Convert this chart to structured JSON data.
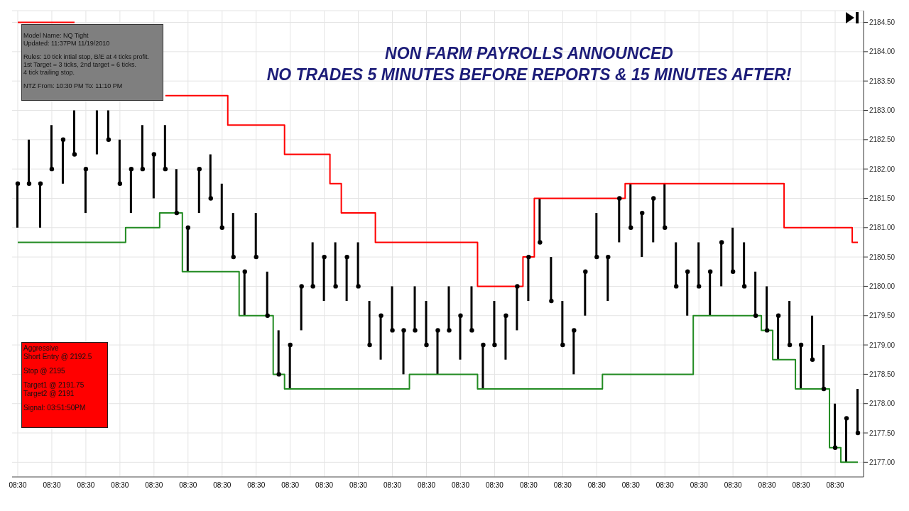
{
  "chart_data": {
    "type": "bar",
    "title": "NON FARM PAYROLLS ANNOUNCED",
    "subtitle": "NO TRADES 5 MINUTES BEFORE REPORTS & 15 MINUTES AFTER!",
    "categories": [
      "08:30",
      null,
      null,
      "08:30",
      null,
      null,
      "08:30",
      null,
      null,
      "08:30",
      null,
      null,
      "08:30",
      null,
      null,
      "08:30",
      null,
      null,
      "08:30",
      null,
      null,
      "08:30",
      null,
      null,
      "08:30",
      null,
      null,
      "08:30",
      null,
      null,
      "08:30",
      null,
      null,
      "08:30",
      null,
      null,
      "08:30",
      null,
      null,
      "08:30",
      null,
      null,
      "08:30",
      null,
      null,
      "08:30",
      null,
      null,
      "08:30",
      null,
      null,
      "08:30",
      null,
      null,
      "08:30",
      null,
      null,
      "08:30",
      null,
      null,
      "08:30",
      null,
      null,
      "08:30",
      null,
      null,
      "08:30",
      null,
      null,
      "08:30",
      null,
      null,
      "08:30",
      null,
      null
    ],
    "series": [
      {
        "color": "#000000",
        "base": [
          2181,
          2181.75,
          2181,
          2182,
          2181.75,
          2182.25,
          2181.25,
          2182.25,
          2182.5,
          2181.75,
          2181.25,
          2182,
          2181.5,
          2182,
          2181.25,
          2180.25,
          2181.25,
          2181.5,
          2181,
          2180.5,
          2179.5,
          2180.5,
          2179.5,
          2178.5,
          2178.25,
          2179.25,
          2180,
          2179.75,
          2180,
          2179.75,
          2180,
          2179,
          2178.75,
          2179.25,
          2178.5,
          2179.25,
          2179,
          2178.5,
          2179.25,
          2178.75,
          2179.25,
          2178.25,
          2179,
          2178.75,
          2179.25,
          2179.75,
          2180.75,
          2179.75,
          2179,
          2178.5,
          2179.5,
          2180.5,
          2179.75,
          2180.75,
          2181,
          2180.5,
          2180.75,
          2181,
          2180,
          2179.5,
          2180,
          2179.5,
          2180,
          2180.25,
          2180,
          2179.5,
          2179.25,
          2178.75,
          2179,
          2178.25,
          2178.75,
          2178.25,
          2177.25,
          2177,
          2177.5
        ],
        "values": [
          0.75,
          0.75,
          0.75,
          0.75,
          0.75,
          0.75,
          0.75,
          0.75,
          0.5,
          0.75,
          0.75,
          0.75,
          0.75,
          0.75,
          0.75,
          0.75,
          0.75,
          0.75,
          0.75,
          0.75,
          0.75,
          0.75,
          0.75,
          0.75,
          0.75,
          0.75,
          0.75,
          0.75,
          0.75,
          0.75,
          0.75,
          0.75,
          0.75,
          0.75,
          0.75,
          0.75,
          0.75,
          0.75,
          0.75,
          0.75,
          0.75,
          0.75,
          0.75,
          0.75,
          0.75,
          0.75,
          0.75,
          0.75,
          0.75,
          0.75,
          0.75,
          0.75,
          0.75,
          0.75,
          0.75,
          0.75,
          0.75,
          0.75,
          0.75,
          0.75,
          0.75,
          0.75,
          0.75,
          0.75,
          0.75,
          0.75,
          0.75,
          0.75,
          0.75,
          0.75,
          0.75,
          0.75,
          0.75,
          0.75,
          0.75
        ]
      },
      {
        "type": "scatter",
        "color": "#000000",
        "marker": "circle",
        "values": [
          2181.75,
          2181.75,
          2181.75,
          2182,
          2182.5,
          2182.25,
          2182,
          null,
          2182.5,
          2181.75,
          2182,
          2182,
          2182.25,
          2182,
          2181.25,
          2181,
          2182,
          2181.5,
          2181,
          2180.5,
          2180.25,
          2180.5,
          2179.5,
          2178.5,
          2179,
          2180,
          2180,
          2180.5,
          2180,
          2180.5,
          2180,
          2179,
          2179.5,
          2179.25,
          2179.25,
          2179.25,
          2179,
          2179.25,
          2179.25,
          2179.5,
          2179.25,
          2179,
          2179,
          2179.5,
          2180,
          2180.5,
          2180.75,
          2179.75,
          2179,
          2179.25,
          2180.25,
          2180.5,
          2180.5,
          2181.5,
          2181,
          2181.25,
          2181.5,
          2181,
          2180,
          2180.25,
          2180,
          2180.25,
          2180.75,
          2180.25,
          2180,
          2179.5,
          2179.25,
          2179.5,
          2179,
          2179,
          2178.75,
          2178.25,
          2177.25,
          2177.75,
          2177.5
        ]
      },
      {
        "type": "step",
        "color": "#ff0000",
        "values": [
          2184.5,
          2184.5,
          2184.5,
          2184.5,
          2184.5,
          2184.5,
          null,
          null,
          null,
          null,
          null,
          null,
          null,
          2183.25,
          2183.25,
          2183.25,
          2183.25,
          2183.25,
          2183.25,
          2182.75,
          2182.75,
          2182.75,
          2182.75,
          2182.75,
          2182.25,
          2182.25,
          2182.25,
          2182.25,
          2181.75,
          2181.25,
          2181.25,
          2181.25,
          2180.75,
          2180.75,
          2180.75,
          2180.75,
          2180.75,
          2180.75,
          2180.75,
          2180.75,
          2180.75,
          2180,
          2180,
          2180,
          2180,
          2180.5,
          2181.5,
          2181.5,
          2181.5,
          2181.5,
          2181.5,
          2181.5,
          2181.5,
          2181.5,
          2181.75,
          2181.75,
          2181.75,
          2181.75,
          2181.75,
          2181.75,
          2181.75,
          2181.75,
          2181.75,
          2181.75,
          2181.75,
          2181.75,
          2181.75,
          2181.75,
          2181,
          2181,
          2181,
          2181,
          2181,
          2181,
          2180.75
        ]
      },
      {
        "type": "step",
        "color": "#228b22",
        "values": [
          2180.75,
          2180.75,
          2180.75,
          2180.75,
          2180.75,
          2180.75,
          2180.75,
          2180.75,
          2180.75,
          2180.75,
          2181,
          2181,
          2181,
          2181.25,
          2181.25,
          2180.25,
          2180.25,
          2180.25,
          2180.25,
          2180.25,
          2179.5,
          2179.5,
          2179.5,
          2178.5,
          2178.25,
          2178.25,
          2178.25,
          2178.25,
          2178.25,
          2178.25,
          2178.25,
          2178.25,
          2178.25,
          2178.25,
          2178.25,
          2178.5,
          2178.5,
          2178.5,
          2178.5,
          2178.5,
          2178.5,
          2178.25,
          2178.25,
          2178.25,
          2178.25,
          2178.25,
          2178.25,
          2178.25,
          2178.25,
          2178.25,
          2178.25,
          2178.25,
          2178.5,
          2178.5,
          2178.5,
          2178.5,
          2178.5,
          2178.5,
          2178.5,
          2178.5,
          2179.5,
          2179.5,
          2179.5,
          2179.5,
          2179.5,
          2179.5,
          2179.25,
          2178.75,
          2178.75,
          2178.25,
          2178.25,
          2178.25,
          2177.25,
          2177,
          2177
        ]
      }
    ],
    "ylim": [
      2176.75,
      2184.7
    ],
    "yticks": [
      {
        "value": 2177,
        "label": "2177.00"
      },
      {
        "value": 2177.5,
        "label": "2177.50"
      },
      {
        "value": 2178,
        "label": "2178.00"
      },
      {
        "value": 2178.5,
        "label": "2178.50"
      },
      {
        "value": 2179,
        "label": "2179.00"
      },
      {
        "value": 2179.5,
        "label": "2179.50"
      },
      {
        "value": 2180,
        "label": "2180.00"
      },
      {
        "value": 2180.5,
        "label": "2180.50"
      },
      {
        "value": 2181,
        "label": "2181.00"
      },
      {
        "value": 2181.5,
        "label": "2181.50"
      },
      {
        "value": 2182,
        "label": "2182.00"
      },
      {
        "value": 2182.5,
        "label": "2182.50"
      },
      {
        "value": 2183,
        "label": "2183.00"
      },
      {
        "value": 2183.5,
        "label": "2183.50"
      },
      {
        "value": 2184,
        "label": "2184.00"
      },
      {
        "value": 2184.5,
        "label": "2184.50"
      }
    ],
    "grid": true,
    "annotations": [
      "Model Name: NQ Tight",
      "Updated: 11:37PM 11/19/2010",
      "Rules: 10 tick intial stop, B/E at 4 ticks profit.",
      "1st Target = 3 ticks, 2nd target = 6 ticks.",
      "4 tick trailing stop.",
      "NTZ From: 10:30 PM To: 11:10 PM",
      "Aggressive",
      "Short Entry @ 2192.5",
      "Stop @ 2195",
      "Target1 @ 2191.75",
      "Target2 @ 2191",
      "Signal: 03:51:50PM"
    ]
  }
}
